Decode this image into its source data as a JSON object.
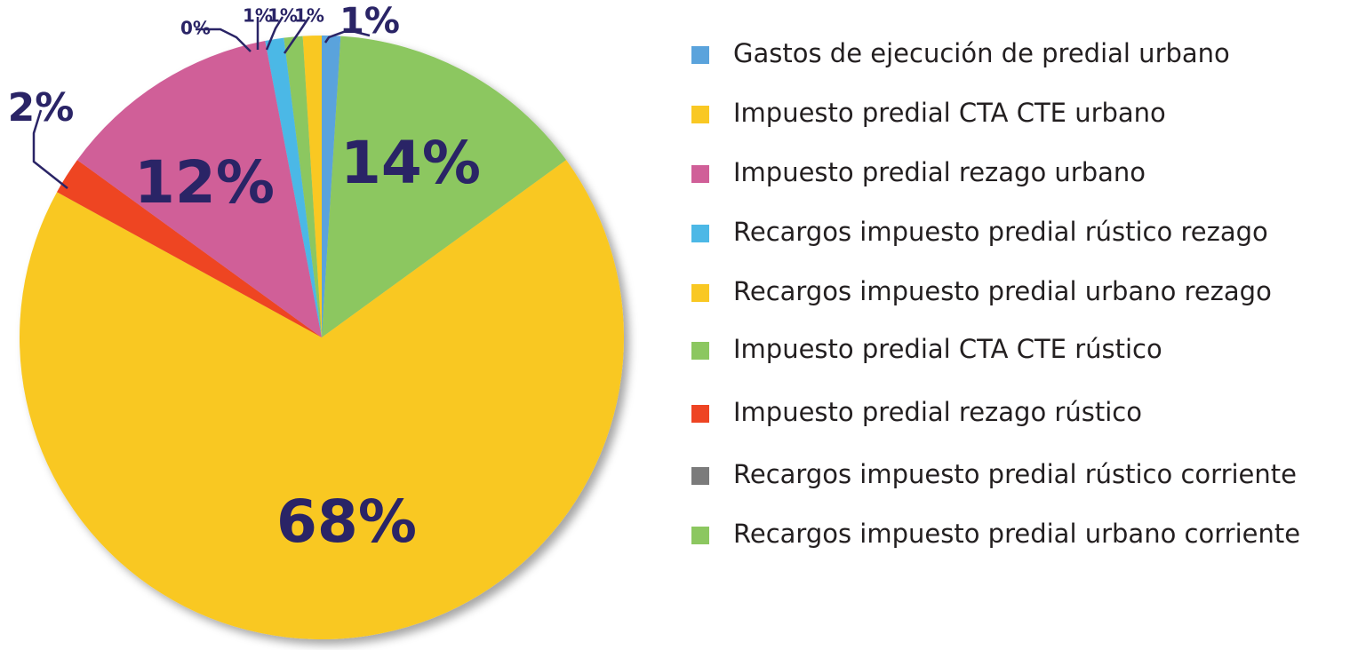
{
  "chart_data": {
    "type": "pie",
    "values": [
      1,
      14,
      68,
      2,
      12,
      0,
      1,
      1,
      1
    ],
    "value_labels": [
      "1%",
      "14%",
      "68%",
      "2%",
      "12%",
      "0%",
      "1%",
      "1%",
      "1%"
    ],
    "colors": [
      "#5aa3dc",
      "#8cc760",
      "#f9c823",
      "#ee4423",
      "#d05f98",
      "#7b7b7b",
      "#4cb8e6",
      "#8cc760",
      "#f9c823"
    ],
    "legend": [
      {
        "name": "Gastos de ejecución de predial urbano",
        "color": "#5aa3dc"
      },
      {
        "name": "Impuesto predial CTA CTE urbano",
        "color": "#f9c823"
      },
      {
        "name": "Impuesto predial rezago urbano",
        "color": "#d05f98"
      },
      {
        "name": "Recargos impuesto predial rústico rezago",
        "color": "#4cb8e6"
      },
      {
        "name": "Recargos impuesto predial urbano rezago",
        "color": "#f9c823"
      },
      {
        "name": "Impuesto predial CTA CTE rústico",
        "color": "#8cc760"
      },
      {
        "name": "Impuesto predial rezago rústico",
        "color": "#ee4423"
      },
      {
        "name": "Recargos impuesto predial rústico corriente",
        "color": "#7b7b7b"
      },
      {
        "name": "Recargos impuesto predial urbano corriente",
        "color": "#8cc760"
      }
    ]
  }
}
